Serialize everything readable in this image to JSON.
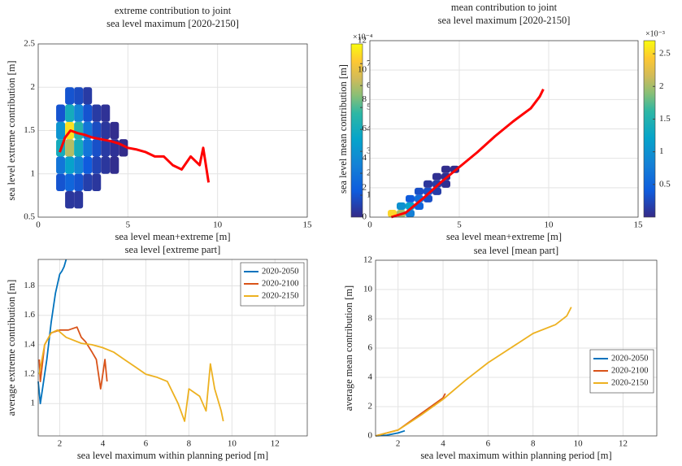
{
  "chart_data": [
    {
      "type": "density",
      "title": [
        "extreme contribution to joint",
        "sea level maximum [2020-2150]"
      ],
      "xlabel": "sea level mean+extreme [m]",
      "ylabel": "sea level extreme contribution [m]",
      "xlim": [
        0,
        15
      ],
      "ylim": [
        0.5,
        2.5
      ],
      "xticks": [
        0,
        5,
        10,
        15
      ],
      "yticks": [
        0.5,
        1,
        1.5,
        2,
        2.5
      ],
      "grid": true,
      "clim": [
        0,
        7.9
      ],
      "cticks": [
        1,
        2,
        3,
        4,
        5,
        6,
        7
      ],
      "colorbar_exponent": "×10⁻⁴",
      "cells": {
        "x": [
          1.25,
          1.25,
          1.25,
          1.25,
          1.25,
          1.75,
          1.75,
          1.75,
          1.75,
          1.75,
          1.75,
          1.75,
          2.25,
          2.25,
          2.25,
          2.25,
          2.25,
          2.25,
          2.25,
          2.75,
          2.75,
          2.75,
          2.75,
          2.75,
          2.75,
          3.25,
          3.25,
          3.25,
          3.25,
          3.25,
          3.75,
          3.75,
          3.75,
          3.75,
          4.25,
          4.25,
          4.25,
          4.75
        ],
        "y": [
          0.9,
          1.1,
          1.3,
          1.5,
          1.7,
          0.7,
          0.9,
          1.1,
          1.3,
          1.5,
          1.7,
          1.9,
          0.7,
          0.9,
          1.1,
          1.3,
          1.5,
          1.7,
          1.9,
          0.9,
          1.1,
          1.3,
          1.5,
          1.7,
          1.9,
          0.9,
          1.1,
          1.3,
          1.5,
          1.7,
          1.1,
          1.3,
          1.5,
          1.7,
          1.1,
          1.3,
          1.5,
          1.3
        ],
        "density": [
          1,
          2,
          4,
          3,
          1,
          0.3,
          1.5,
          3.5,
          6,
          7.5,
          4,
          1,
          0.3,
          1,
          2.5,
          4,
          4.5,
          2.5,
          0.8,
          0.5,
          1.2,
          2,
          2,
          1,
          0.4,
          0.3,
          0.6,
          0.9,
          0.8,
          0.4,
          0.3,
          0.4,
          0.3,
          0.2,
          0.1,
          0.2,
          0.1,
          0.05
        ]
      },
      "series": [
        {
          "color": "#ff0000",
          "x": [
            1.2,
            1.5,
            1.8,
            2.2,
            2.6,
            3,
            3.5,
            4,
            4.5,
            5,
            5.5,
            6,
            6.5,
            7,
            7.5,
            8,
            8.5,
            9,
            9.2,
            9.5
          ],
          "y": [
            1.25,
            1.42,
            1.5,
            1.47,
            1.45,
            1.42,
            1.4,
            1.38,
            1.35,
            1.3,
            1.28,
            1.25,
            1.2,
            1.2,
            1.1,
            1.05,
            1.2,
            1.1,
            1.3,
            0.9
          ]
        }
      ]
    },
    {
      "type": "density",
      "title": [
        "mean contribution to joint",
        "sea level maximum [2020-2150]"
      ],
      "xlabel": "sea level mean+extreme [m]",
      "ylabel": "sea level mean contribution [m]",
      "xlim": [
        0,
        15
      ],
      "ylim": [
        0,
        12
      ],
      "xticks": [
        0,
        5,
        10,
        15
      ],
      "yticks": [
        0,
        2,
        4,
        6,
        8,
        10,
        12
      ],
      "grid": true,
      "clim": [
        0,
        2.7
      ],
      "cticks": [
        0.5,
        1,
        1.5,
        2,
        2.5
      ],
      "colorbar_exponent": "×10⁻³",
      "cells": {
        "x": [
          1.25,
          1.75,
          1.75,
          2.25,
          2.25,
          2.25,
          2.75,
          2.75,
          2.75,
          3.25,
          3.25,
          3.25,
          3.75,
          3.75,
          3.75,
          4.25,
          4.25,
          4.25,
          4.75
        ],
        "y": [
          0.25,
          0.25,
          0.75,
          0.25,
          0.75,
          1.25,
          0.75,
          1.25,
          1.75,
          1.25,
          1.75,
          2.25,
          1.75,
          2.25,
          2.75,
          2.25,
          2.75,
          3.25,
          3.25
        ],
        "density": [
          2.5,
          2,
          1,
          0.8,
          1.2,
          0.4,
          0.5,
          0.6,
          0.3,
          0.3,
          0.3,
          0.1,
          0.15,
          0.15,
          0.05,
          0.05,
          0.05,
          0.03,
          0.02
        ]
      },
      "series": [
        {
          "color": "#ff0000",
          "x": [
            1.2,
            2,
            3,
            4,
            5,
            6,
            7,
            8,
            9,
            9.5,
            9.7
          ],
          "y": [
            0,
            0.3,
            1.3,
            2.4,
            3.4,
            4.4,
            5.5,
            6.5,
            7.4,
            8.2,
            8.7
          ]
        }
      ]
    },
    {
      "type": "line",
      "title": "sea level [extreme part]",
      "xlabel": "sea level maximum within planning period [m]",
      "ylabel": "average extreme contribution [m]",
      "xlim": [
        1,
        13.5
      ],
      "ylim": [
        0.78,
        1.98
      ],
      "xticks": [
        2,
        4,
        6,
        8,
        10,
        12
      ],
      "yticks": [
        1,
        1.2,
        1.4,
        1.6,
        1.8
      ],
      "grid": true,
      "legend": "northeast",
      "series": [
        {
          "name": "2020-2050",
          "color": "#0072bd",
          "x": [
            1,
            1.1,
            1.2,
            1.4,
            1.6,
            1.8,
            2,
            2.1,
            2.2,
            2.3
          ],
          "y": [
            1.15,
            1.0,
            1.1,
            1.3,
            1.55,
            1.75,
            1.88,
            1.9,
            1.93,
            1.98
          ]
        },
        {
          "name": "2020-2100",
          "color": "#d95319",
          "x": [
            1.05,
            1.1,
            1.3,
            1.6,
            2,
            2.4,
            2.8,
            3,
            3.2,
            3.5,
            3.7,
            3.9,
            4.1,
            4.2
          ],
          "y": [
            1.3,
            1.15,
            1.4,
            1.48,
            1.5,
            1.5,
            1.52,
            1.45,
            1.42,
            1.35,
            1.3,
            1.1,
            1.3,
            1.15
          ]
        },
        {
          "name": "2020-2150",
          "color": "#edb120",
          "x": [
            1.05,
            1.3,
            1.6,
            1.9,
            2.3,
            3,
            3.5,
            4,
            4.5,
            5,
            5.5,
            6,
            6.5,
            7,
            7.5,
            7.8,
            8,
            8.5,
            8.8,
            9,
            9.2,
            9.3,
            9.5,
            9.6
          ],
          "y": [
            1.2,
            1.4,
            1.48,
            1.5,
            1.45,
            1.41,
            1.4,
            1.38,
            1.35,
            1.3,
            1.25,
            1.2,
            1.18,
            1.15,
            1.0,
            0.88,
            1.1,
            1.05,
            0.95,
            1.27,
            1.1,
            1.05,
            0.95,
            0.88
          ]
        }
      ]
    },
    {
      "type": "line",
      "title": "sea level [mean part]",
      "xlabel": "sea level maximum within planning period [m]",
      "ylabel": "average mean contribution [m]",
      "xlim": [
        1,
        13.5
      ],
      "ylim": [
        0,
        12
      ],
      "xticks": [
        2,
        4,
        6,
        8,
        10,
        12
      ],
      "yticks": [
        0,
        2,
        4,
        6,
        8,
        10,
        12
      ],
      "grid": true,
      "legend": "east",
      "series": [
        {
          "name": "2020-2050",
          "color": "#0072bd",
          "x": [
            1,
            1.5,
            2,
            2.3
          ],
          "y": [
            0,
            0.05,
            0.2,
            0.35
          ]
        },
        {
          "name": "2020-2100",
          "color": "#d95319",
          "x": [
            1,
            2,
            3,
            4,
            4.1
          ],
          "y": [
            0,
            0.4,
            1.5,
            2.6,
            2.9
          ]
        },
        {
          "name": "2020-2150",
          "color": "#edb120",
          "x": [
            1,
            2,
            3,
            4,
            5,
            6,
            7,
            8,
            9,
            9.5,
            9.7
          ],
          "y": [
            0,
            0.4,
            1.4,
            2.5,
            3.8,
            5,
            6,
            7,
            7.6,
            8.2,
            8.8
          ]
        }
      ]
    }
  ]
}
